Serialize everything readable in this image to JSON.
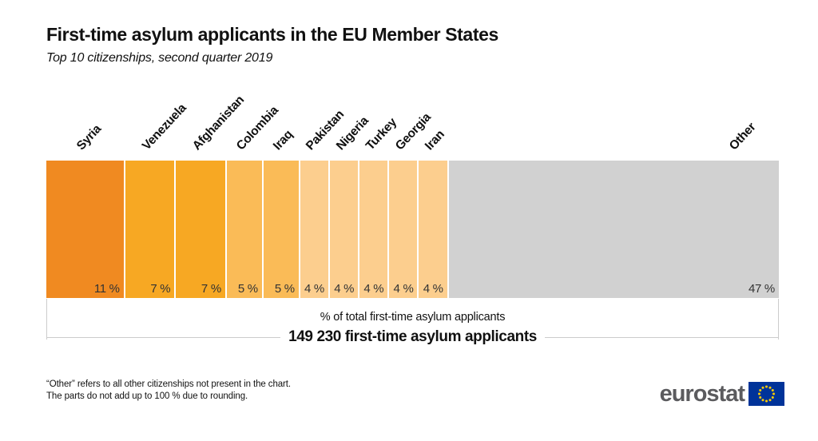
{
  "title": "First-time asylum applicants in the EU Member States",
  "subtitle": "Top 10 citizenships, second quarter 2019",
  "chart_data": {
    "type": "bar",
    "variant": "horizontal-100pct-stacked",
    "title": "First-time asylum applicants in the EU Member States",
    "subtitle": "Top 10 citizenships, second quarter 2019",
    "categories": [
      "Syria",
      "Venezuela",
      "Afghanistan",
      "Colombia",
      "Iraq",
      "Pakistan",
      "Nigeria",
      "Turkey",
      "Georgia",
      "Iran",
      "Other"
    ],
    "values": [
      11,
      7,
      7,
      5,
      5,
      4,
      4,
      4,
      4,
      4,
      47
    ],
    "value_labels": [
      "11 %",
      "7 %",
      "7 %",
      "5 %",
      "5 %",
      "4 %",
      "4 %",
      "4 %",
      "4 %",
      "4 %",
      "47 %"
    ],
    "colors": [
      "#F08A21",
      "#F7A823",
      "#F7A823",
      "#FABB57",
      "#FABB57",
      "#FCCE8E",
      "#FCCE8E",
      "#FCCE8E",
      "#FCCE8E",
      "#FCCE8E",
      "#D1D1D1"
    ],
    "xlabel": "% of total first-time asylum applicants",
    "xlim": [
      0,
      100
    ],
    "grid": false,
    "legend": "none",
    "total_annotation": "149 230 first-time asylum applicants"
  },
  "axis": {
    "caption": "% of total first-time asylum applicants",
    "total": "149 230 first-time asylum applicants"
  },
  "footnotes": {
    "line1": "“Other” refers to all other citizenships not present in the chart.",
    "line2": "The parts do not add up to 100 % due to rounding."
  },
  "logo": {
    "text": "eurostat",
    "flag_bg": "#003399",
    "flag_star_color": "#FFCC00"
  }
}
